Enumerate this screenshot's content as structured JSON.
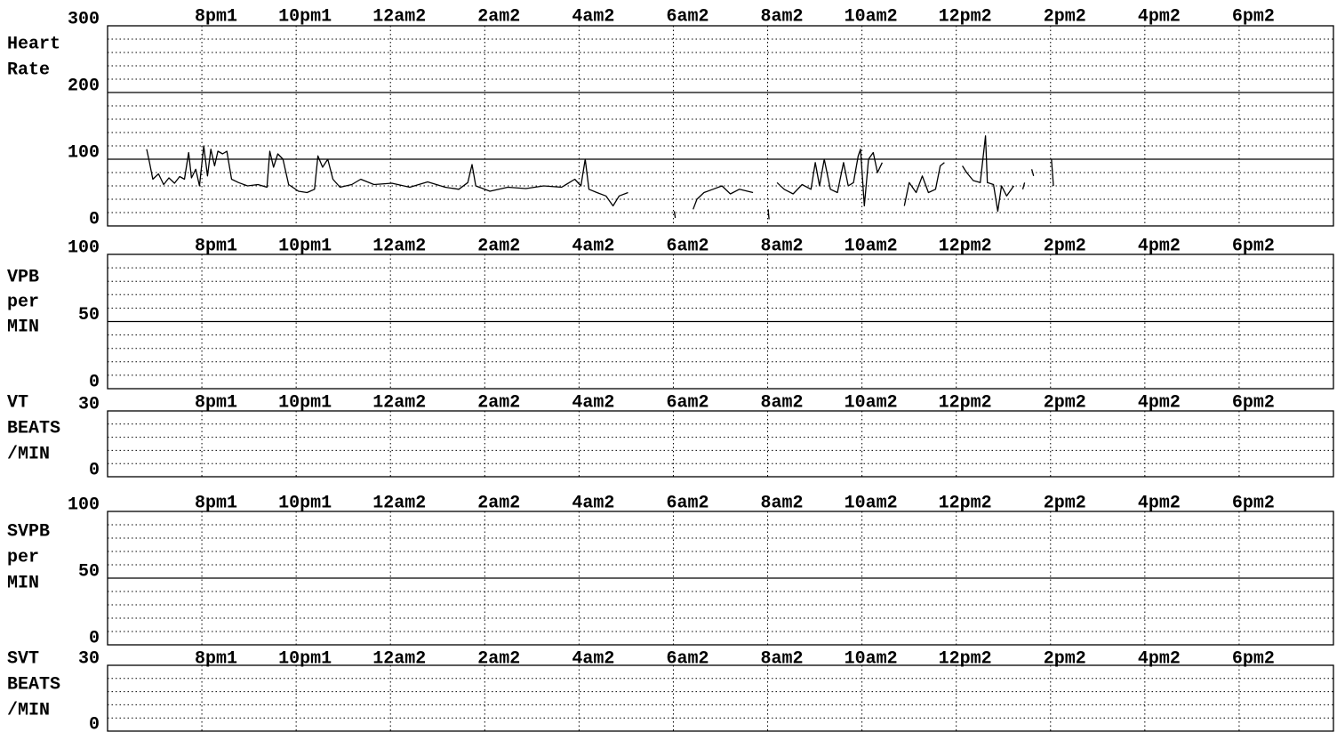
{
  "chart_data": [
    {
      "type": "line",
      "ylabel": [
        "Heart",
        "Rate"
      ],
      "color": "#000000",
      "xlim": [
        18,
        44
      ],
      "xticks": [
        {
          "value": 20,
          "label": "8pm1"
        },
        {
          "value": 22,
          "label": "10pm1"
        },
        {
          "value": 24,
          "label": "12am2"
        },
        {
          "value": 26,
          "label": "2am2"
        },
        {
          "value": 28,
          "label": "4am2"
        },
        {
          "value": 30,
          "label": "6am2"
        },
        {
          "value": 32,
          "label": "8am2"
        },
        {
          "value": 34,
          "label": "10am2"
        },
        {
          "value": 36,
          "label": "12pm2"
        },
        {
          "value": 38,
          "label": "2pm2"
        },
        {
          "value": 40,
          "label": "4pm2"
        },
        {
          "value": 42,
          "label": "6pm2"
        }
      ],
      "ylim": [
        0,
        300
      ],
      "yticks": [
        0,
        100,
        200,
        300
      ],
      "minor_yticks": [
        20,
        40,
        60,
        80,
        120,
        140,
        160,
        180,
        220,
        240,
        260,
        280
      ],
      "x": [
        18.83,
        18.89,
        18.96,
        19.08,
        19.19,
        19.3,
        19.42,
        19.53,
        19.63,
        19.72,
        19.78,
        19.87,
        19.95,
        20.04,
        20.12,
        20.19,
        20.27,
        20.34,
        20.44,
        20.53,
        20.63,
        20.78,
        20.97,
        21.19,
        21.38,
        21.44,
        21.52,
        21.61,
        21.72,
        21.84,
        22.05,
        22.23,
        22.39,
        22.46,
        22.56,
        22.67,
        22.78,
        22.93,
        23.18,
        23.37,
        23.65,
        24.03,
        24.41,
        24.79,
        25.16,
        25.45,
        25.64,
        25.73,
        25.81,
        26.11,
        26.49,
        26.87,
        27.25,
        27.63,
        27.91,
        28.04,
        28.13,
        28.21,
        28.38,
        28.57,
        28.72,
        28.85,
        29.04,
        null,
        30.02,
        30.04,
        null,
        30.42,
        30.5,
        30.65,
        30.84,
        31.03,
        31.21,
        31.4,
        31.69,
        null,
        32.01,
        32.03,
        null,
        32.2,
        32.35,
        32.54,
        32.73,
        32.92,
        33.01,
        33.1,
        33.2,
        33.33,
        33.48,
        33.61,
        33.71,
        33.82,
        33.92,
        33.97,
        34.05,
        34.14,
        34.24,
        34.33,
        34.43,
        null,
        34.9,
        35.0,
        35.15,
        35.28,
        35.41,
        35.56,
        35.66,
        35.75,
        null,
        36.13,
        36.22,
        36.36,
        36.51,
        36.62,
        36.66,
        36.79,
        36.88,
        36.96,
        37.07,
        37.22,
        null,
        37.41,
        37.45,
        null,
        37.6,
        37.64,
        null,
        38.02,
        38.06
      ],
      "values": [
        115,
        95,
        70,
        78,
        62,
        72,
        64,
        74,
        70,
        110,
        72,
        85,
        60,
        120,
        75,
        115,
        90,
        112,
        108,
        112,
        70,
        65,
        60,
        62,
        58,
        112,
        88,
        108,
        100,
        62,
        52,
        50,
        55,
        105,
        88,
        100,
        70,
        58,
        62,
        70,
        62,
        64,
        58,
        66,
        58,
        55,
        65,
        92,
        60,
        52,
        58,
        56,
        60,
        58,
        70,
        60,
        100,
        55,
        50,
        45,
        30,
        45,
        50,
        null,
        22,
        12,
        null,
        25,
        40,
        50,
        55,
        60,
        48,
        55,
        50,
        null,
        25,
        10,
        null,
        65,
        55,
        48,
        62,
        55,
        95,
        60,
        100,
        55,
        50,
        95,
        60,
        65,
        105,
        115,
        30,
        100,
        110,
        80,
        95,
        null,
        30,
        65,
        50,
        75,
        50,
        55,
        90,
        95,
        null,
        90,
        80,
        68,
        65,
        135,
        65,
        62,
        22,
        60,
        45,
        60,
        null,
        55,
        65,
        null,
        85,
        75,
        null,
        100,
        60
      ]
    },
    {
      "type": "line",
      "ylabel": [
        "VPB",
        "per",
        "MIN"
      ],
      "xlim": [
        18,
        44
      ],
      "xticks": [
        {
          "value": 20,
          "label": "8pm1"
        },
        {
          "value": 22,
          "label": "10pm1"
        },
        {
          "value": 24,
          "label": "12am2"
        },
        {
          "value": 26,
          "label": "2am2"
        },
        {
          "value": 28,
          "label": "4am2"
        },
        {
          "value": 30,
          "label": "6am2"
        },
        {
          "value": 32,
          "label": "8am2"
        },
        {
          "value": 34,
          "label": "10am2"
        },
        {
          "value": 36,
          "label": "12pm2"
        },
        {
          "value": 38,
          "label": "2pm2"
        },
        {
          "value": 40,
          "label": "4pm2"
        },
        {
          "value": 42,
          "label": "6pm2"
        }
      ],
      "ylim": [
        0,
        100
      ],
      "yticks": [
        0,
        50,
        100
      ],
      "minor_yticks": [
        10,
        20,
        30,
        40,
        60,
        70,
        80,
        90
      ]
    },
    {
      "type": "line",
      "ylabel": [
        "VT",
        "BEATS",
        "/MIN"
      ],
      "xlim": [
        18,
        44
      ],
      "xticks": [
        {
          "value": 20,
          "label": "8pm1"
        },
        {
          "value": 22,
          "label": "10pm1"
        },
        {
          "value": 24,
          "label": "12am2"
        },
        {
          "value": 26,
          "label": "2am2"
        },
        {
          "value": 28,
          "label": "4am2"
        },
        {
          "value": 30,
          "label": "6am2"
        },
        {
          "value": 32,
          "label": "8am2"
        },
        {
          "value": 34,
          "label": "10am2"
        },
        {
          "value": 36,
          "label": "12pm2"
        },
        {
          "value": 38,
          "label": "2pm2"
        },
        {
          "value": 40,
          "label": "4pm2"
        },
        {
          "value": 42,
          "label": "6pm2"
        }
      ],
      "ylim": [
        0,
        30
      ],
      "yticks": [
        0,
        30
      ],
      "minor_yticks": [
        6,
        12,
        18,
        24
      ]
    },
    {
      "type": "line",
      "ylabel": [
        "SVPB",
        "per",
        "MIN"
      ],
      "xlim": [
        18,
        44
      ],
      "xticks": [
        {
          "value": 20,
          "label": "8pm1"
        },
        {
          "value": 22,
          "label": "10pm1"
        },
        {
          "value": 24,
          "label": "12am2"
        },
        {
          "value": 26,
          "label": "2am2"
        },
        {
          "value": 28,
          "label": "4am2"
        },
        {
          "value": 30,
          "label": "6am2"
        },
        {
          "value": 32,
          "label": "8am2"
        },
        {
          "value": 34,
          "label": "10am2"
        },
        {
          "value": 36,
          "label": "12pm2"
        },
        {
          "value": 38,
          "label": "2pm2"
        },
        {
          "value": 40,
          "label": "4pm2"
        },
        {
          "value": 42,
          "label": "6pm2"
        }
      ],
      "ylim": [
        0,
        100
      ],
      "yticks": [
        0,
        50,
        100
      ],
      "minor_yticks": [
        10,
        20,
        30,
        40,
        60,
        70,
        80,
        90
      ]
    },
    {
      "type": "line",
      "ylabel": [
        "SVT",
        "BEATS",
        "/MIN"
      ],
      "xlim": [
        18,
        44
      ],
      "xticks": [
        {
          "value": 20,
          "label": "8pm1"
        },
        {
          "value": 22,
          "label": "10pm1"
        },
        {
          "value": 24,
          "label": "12am2"
        },
        {
          "value": 26,
          "label": "2am2"
        },
        {
          "value": 28,
          "label": "4am2"
        },
        {
          "value": 30,
          "label": "6am2"
        },
        {
          "value": 32,
          "label": "8am2"
        },
        {
          "value": 34,
          "label": "10am2"
        },
        {
          "value": 36,
          "label": "12pm2"
        },
        {
          "value": 38,
          "label": "2pm2"
        },
        {
          "value": 40,
          "label": "4pm2"
        },
        {
          "value": 42,
          "label": "6pm2"
        }
      ],
      "ylim": [
        0,
        30
      ],
      "yticks": [
        0,
        30
      ],
      "minor_yticks": [
        6,
        12,
        18,
        24
      ]
    }
  ]
}
